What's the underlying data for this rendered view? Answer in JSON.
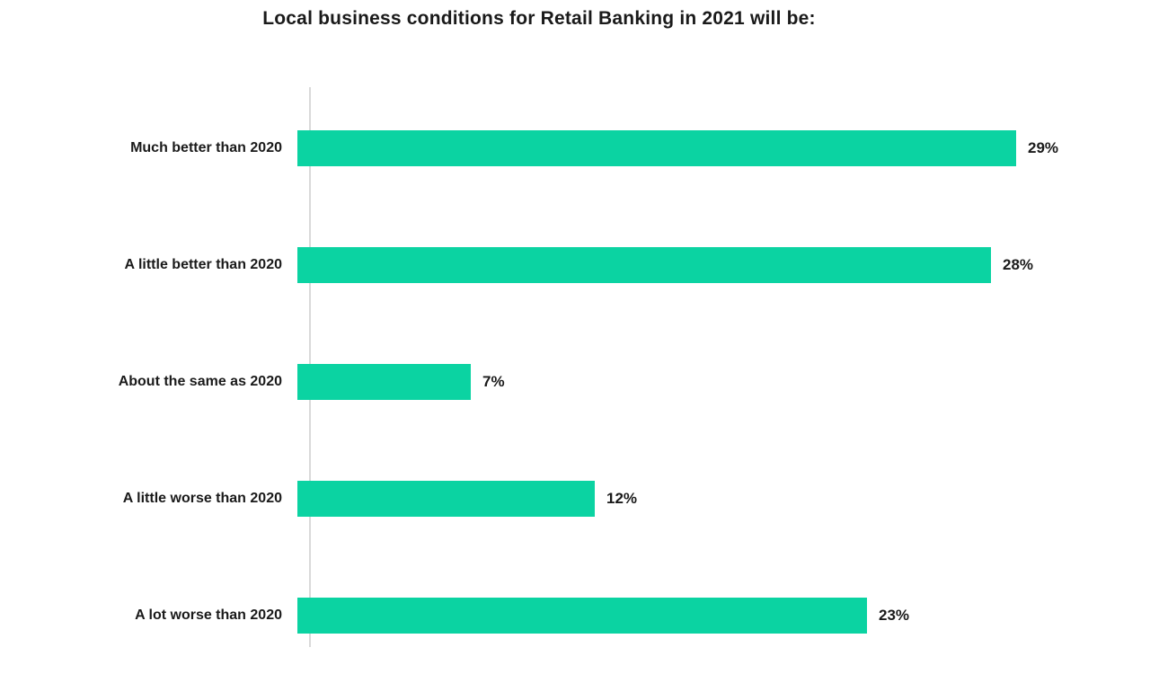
{
  "title": "Local business conditions for Retail Banking in 2021 will be:",
  "chart_data": {
    "type": "bar",
    "orientation": "horizontal",
    "title": "Local business conditions for Retail Banking in 2021 will be:",
    "categories": [
      "Much better than 2020",
      "A little better than 2020",
      "About the same as 2020",
      "A little worse than 2020",
      "A lot worse than 2020"
    ],
    "values": [
      29,
      28,
      7,
      12,
      23
    ],
    "value_labels": [
      "29%",
      "28%",
      "7%",
      "12%",
      "23%"
    ],
    "xlabel": "",
    "ylabel": "",
    "xlim": [
      0,
      30
    ],
    "grid": false,
    "legend": false,
    "bar_color": "#0bd3a2",
    "axis_line_color": "#d9d9d9",
    "text_color": "#1a1a1a"
  }
}
